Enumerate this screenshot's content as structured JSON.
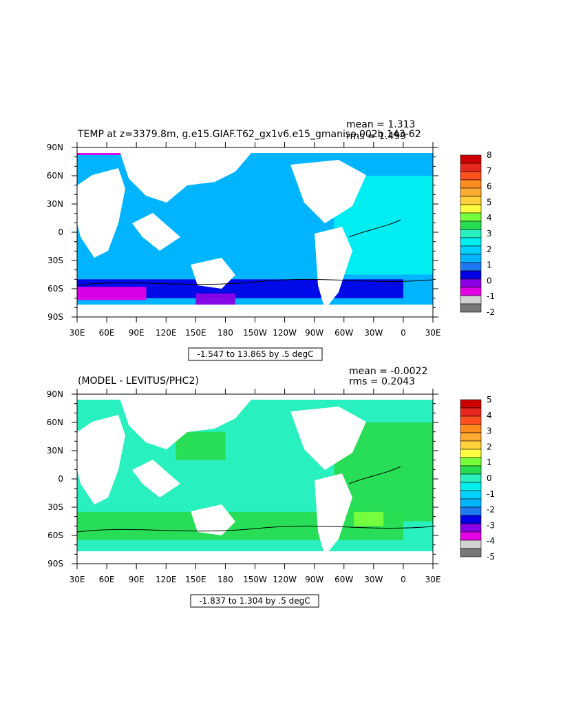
{
  "panels": [
    {
      "title": "TEMP at z=3379.8m, g.e15.GIAF.T62_gx1v6.e15_gmaniso.002b.143-62",
      "mean_label": "mean = 1.313",
      "rms_label": "rms = 1.499",
      "range_label": "-1.547 to 13.865 by .5 degC",
      "colorbar": {
        "labels": [
          "8",
          "7",
          "6",
          "5",
          "4",
          "3",
          "2",
          "1",
          "0",
          "-1",
          "-2"
        ],
        "colors": [
          "#cc0000",
          "#e8281e",
          "#ff5020",
          "#ff8c1e",
          "#ffaa32",
          "#ffd23c",
          "#ffff40",
          "#78ff3c",
          "#28dc50",
          "#28f0be",
          "#00f0f0",
          "#00d2ff",
          "#00b4ff",
          "#1e78f0",
          "#0000e6",
          "#8c00e6",
          "#e600e6",
          "#d2d2d2",
          "#787878"
        ]
      },
      "features": {
        "background": "#00b4ff",
        "patches": [
          {
            "color": "#00f0f0",
            "lon": [
              -70,
              30
            ],
            "lat": [
              -45,
              60
            ]
          },
          {
            "color": "#0000e6",
            "lon": [
              30,
              360
            ],
            "lat": [
              -70,
              -50
            ]
          },
          {
            "color": "#8c00e6",
            "lon": [
              150,
              190
            ],
            "lat": [
              -78,
              -65
            ]
          },
          {
            "color": "#e600e6",
            "lon": [
              30,
              100
            ],
            "lat": [
              -72,
              -58
            ]
          },
          {
            "color": "#e600e6",
            "lon": [
              30,
              130
            ],
            "lat": [
              82,
              88
            ]
          }
        ]
      }
    },
    {
      "title": "(MODEL - LEVITUS/PHC2)",
      "mean_label": "mean = -0.0022",
      "rms_label": "rms = 0.2043",
      "range_label": "-1.837 to 1.304 by .5 degC",
      "colorbar": {
        "labels": [
          "5",
          "4",
          "3",
          "2",
          "1",
          "0",
          "-1",
          "-2",
          "-3",
          "-4",
          "-5"
        ],
        "colors": [
          "#cc0000",
          "#e8281e",
          "#ff5020",
          "#ff8c1e",
          "#ffaa32",
          "#ffd23c",
          "#ffff40",
          "#78ff3c",
          "#28dc50",
          "#28f0be",
          "#00f0f0",
          "#00d2ff",
          "#00b4ff",
          "#1e78f0",
          "#0000e6",
          "#8c00e6",
          "#e600e6",
          "#d2d2d2",
          "#787878"
        ]
      },
      "features": {
        "background": "#28f0be",
        "patches": [
          {
            "color": "#28dc50",
            "lon": [
              -70,
              30
            ],
            "lat": [
              -45,
              60
            ]
          },
          {
            "color": "#28dc50",
            "lon": [
              30,
              360
            ],
            "lat": [
              -65,
              -35
            ]
          },
          {
            "color": "#78ff3c",
            "lon": [
              -50,
              -20
            ],
            "lat": [
              -50,
              -35
            ]
          },
          {
            "color": "#28dc50",
            "lon": [
              130,
              180
            ],
            "lat": [
              20,
              50
            ]
          }
        ]
      }
    }
  ],
  "map": {
    "lat_labels": [
      "90N",
      "60N",
      "30N",
      "0",
      "30S",
      "60S",
      "90S"
    ],
    "lon_labels": [
      "30E",
      "60E",
      "90E",
      "120E",
      "150E",
      "180",
      "150W",
      "120W",
      "90W",
      "60W",
      "30W",
      "0",
      "30E"
    ]
  }
}
